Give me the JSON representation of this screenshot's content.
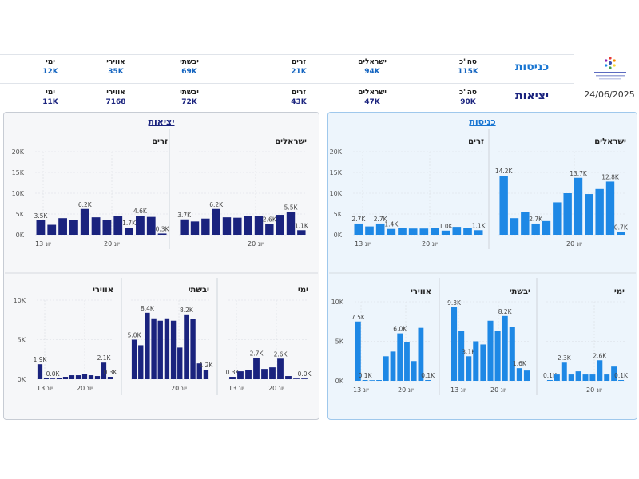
{
  "header": {
    "date": "24/06/2025",
    "rows": [
      {
        "title": "כניסות",
        "stats": [
          {
            "label": "סה\"כ",
            "value": "115K"
          },
          {
            "label": "ישראלים",
            "value": "94K"
          },
          {
            "label": "זרים",
            "value": "21K"
          },
          {
            "label": "יבשתי",
            "value": "69K"
          },
          {
            "label": "אווירי",
            "value": "35K"
          },
          {
            "label": "ימי",
            "value": "12K"
          }
        ]
      },
      {
        "title": "יציאות",
        "stats": [
          {
            "label": "סה\"כ",
            "value": "90K"
          },
          {
            "label": "ישראלים",
            "value": "47K"
          },
          {
            "label": "זרים",
            "value": "43K"
          },
          {
            "label": "יבשתי",
            "value": "72K"
          },
          {
            "label": "אווירי",
            "value": "7168"
          },
          {
            "label": "ימי",
            "value": "11K"
          }
        ]
      }
    ]
  },
  "colors": {
    "entries": "#1e88e5",
    "exits": "#1a237e",
    "entries_title": "#1976d2",
    "exits_title": "#1a237e"
  },
  "panels": {
    "exits_title": "יציאות",
    "entries_title": "כניסות"
  },
  "chart_data": [
    {
      "id": "exit-israelis",
      "panel": "exits",
      "type": "bar",
      "title": "ישראלים",
      "ylim": [
        0,
        20000
      ],
      "yticks": [],
      "xticks": [
        "20 יונ"
      ],
      "values": [
        3700,
        3200,
        3900,
        6200,
        4200,
        4100,
        4500,
        4600,
        2600,
        4800,
        5500,
        1100
      ],
      "data_labels": {
        "0": "3.7K",
        "3": "6.2K",
        "8": "2.6K",
        "10": "5.5K",
        "11": "1.1K"
      }
    },
    {
      "id": "exit-foreigners",
      "panel": "exits",
      "type": "bar",
      "title": "זרים",
      "ylim": [
        0,
        20000
      ],
      "yticks": [
        "0K",
        "5K",
        "10K",
        "15K",
        "20K"
      ],
      "xticks": [
        "13 יונ",
        "20 יונ"
      ],
      "values": [
        3500,
        2400,
        4000,
        3600,
        6200,
        4200,
        3600,
        4600,
        1700,
        4600,
        4300,
        300
      ],
      "data_labels": {
        "0": "3.5K",
        "4": "6.2K",
        "8": "1.7K",
        "9": "4.6K",
        "11": "0.3K"
      }
    },
    {
      "id": "exit-sea",
      "panel": "exits",
      "type": "bar",
      "title": "ימי",
      "ylim": [
        0,
        10000
      ],
      "yticks": [],
      "xticks": [
        "13 יונ",
        "20 יונ"
      ],
      "values": [
        300,
        1000,
        1200,
        2700,
        1300,
        1500,
        2600,
        400,
        0,
        0
      ],
      "data_labels": {
        "0": "0.3K",
        "3": "2.7K",
        "6": "2.6K",
        "9": "0.0K"
      }
    },
    {
      "id": "exit-land",
      "panel": "exits",
      "type": "bar",
      "title": "יבשתי",
      "ylim": [
        0,
        10000
      ],
      "yticks": [],
      "xticks": [
        "20 יונ"
      ],
      "values": [
        5000,
        4300,
        8400,
        7700,
        7400,
        7700,
        7400,
        4000,
        8200,
        7600,
        2000,
        1200
      ],
      "data_labels": {
        "0": "5.0K",
        "2": "8.4K",
        "8": "8.2K",
        "11": "1.2K"
      }
    },
    {
      "id": "exit-air",
      "panel": "exits",
      "type": "bar",
      "title": "אווירי",
      "ylim": [
        0,
        10000
      ],
      "yticks": [
        "0K",
        "5K",
        "10K"
      ],
      "xticks": [
        "13 יונ",
        "20 יונ"
      ],
      "values": [
        1900,
        100,
        0,
        200,
        300,
        500,
        500,
        700,
        500,
        400,
        2100,
        300
      ],
      "data_labels": {
        "0": "1.9K",
        "2": "0.0K",
        "10": "2.1K",
        "11": "0.3K"
      }
    },
    {
      "id": "entry-israelis",
      "panel": "entries",
      "type": "bar",
      "title": "ישראלים",
      "ylim": [
        0,
        20000
      ],
      "yticks": [],
      "xticks": [
        "20 יונ"
      ],
      "values": [
        14200,
        4000,
        5400,
        2700,
        3300,
        7800,
        10000,
        13700,
        9800,
        11000,
        12800,
        700
      ],
      "data_labels": {
        "0": "14.2K",
        "3": "2.7K",
        "7": "13.7K",
        "10": "12.8K",
        "11": "0.7K"
      }
    },
    {
      "id": "entry-foreigners",
      "panel": "entries",
      "type": "bar",
      "title": "זרים",
      "ylim": [
        0,
        20000
      ],
      "yticks": [
        "0K",
        "5K",
        "10K",
        "15K",
        "20K"
      ],
      "xticks": [
        "13 יונ",
        "20 יונ"
      ],
      "values": [
        2700,
        2000,
        2700,
        1400,
        1600,
        1500,
        1500,
        1700,
        1000,
        1900,
        1600,
        1100
      ],
      "data_labels": {
        "0": "2.7K",
        "2": "2.7K",
        "3": "1.4K",
        "8": "1.0K",
        "11": "1.1K"
      }
    },
    {
      "id": "entry-sea",
      "panel": "entries",
      "type": "bar",
      "title": "ימי",
      "ylim": [
        0,
        10000
      ],
      "yticks": [],
      "xticks": [
        "20 יונ"
      ],
      "values": [
        100,
        800,
        2300,
        800,
        1200,
        800,
        800,
        2600,
        800,
        1800,
        100
      ],
      "data_labels": {
        "0": "0.1K",
        "2": "2.3K",
        "7": "2.6K",
        "10": "0.1K"
      }
    },
    {
      "id": "entry-land",
      "panel": "entries",
      "type": "bar",
      "title": "יבשתי",
      "ylim": [
        0,
        10000
      ],
      "yticks": [],
      "xticks": [
        "13 יונ",
        "20 יונ"
      ],
      "values": [
        9300,
        6300,
        3100,
        5000,
        4600,
        7600,
        6300,
        8200,
        6800,
        1600,
        1300
      ],
      "data_labels": {
        "0": "9.3K",
        "2": "3.1K",
        "7": "8.2K",
        "9": "1.6K"
      }
    },
    {
      "id": "entry-air",
      "panel": "entries",
      "type": "bar",
      "title": "אווירי",
      "ylim": [
        0,
        10000
      ],
      "yticks": [
        "0K",
        "5K",
        "10K"
      ],
      "xticks": [
        "13 יונ",
        "20 יונ"
      ],
      "values": [
        7500,
        100,
        0,
        100,
        3100,
        3700,
        6000,
        4900,
        2500,
        6700,
        100
      ],
      "data_labels": {
        "0": "7.5K",
        "1": "0.1K",
        "6": "6.0K",
        "10": "0.1K"
      }
    }
  ]
}
